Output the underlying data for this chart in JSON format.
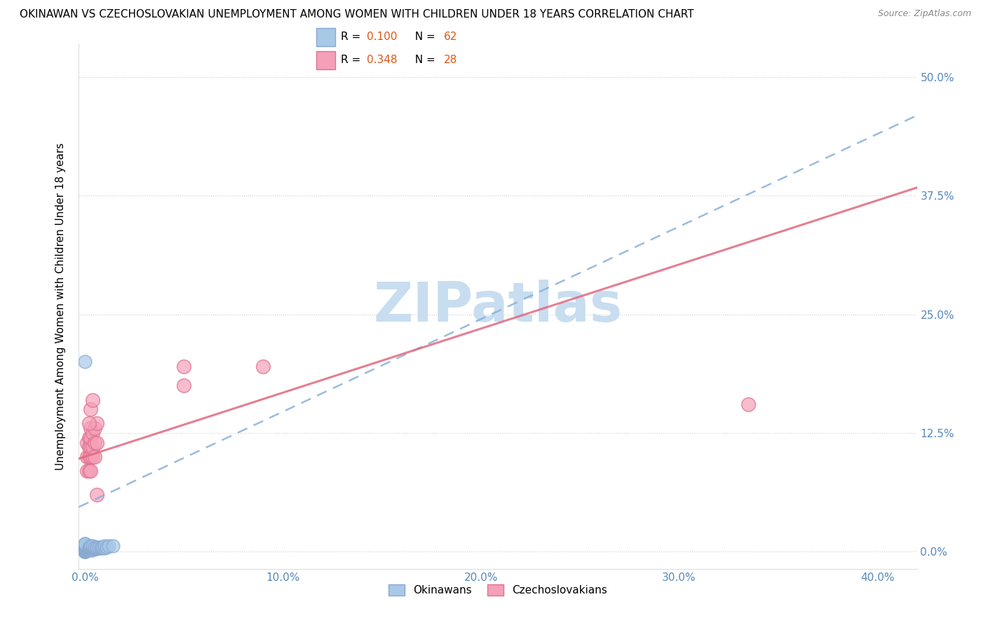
{
  "title": "OKINAWAN VS CZECHOSLOVAKIAN UNEMPLOYMENT AMONG WOMEN WITH CHILDREN UNDER 18 YEARS CORRELATION CHART",
  "source": "Source: ZipAtlas.com",
  "ylabel": "Unemployment Among Women with Children Under 18 years",
  "xlim": [
    -0.003,
    0.42
  ],
  "ylim": [
    -0.018,
    0.535
  ],
  "x_ticks": [
    0.0,
    0.1,
    0.2,
    0.3,
    0.4
  ],
  "y_ticks": [
    0.0,
    0.125,
    0.25,
    0.375,
    0.5
  ],
  "okinawan_R": 0.1,
  "okinawan_N": 62,
  "czechoslovakian_R": 0.348,
  "czechoslovakian_N": 28,
  "okinawan_color": "#a8c8e8",
  "czechoslovakian_color": "#f4a0b8",
  "okinawan_edge_color": "#88a8d0",
  "czechoslovakian_edge_color": "#e07090",
  "okinawan_line_color": "#88b0d8",
  "czechoslovakian_line_color": "#e06880",
  "tick_color": "#5588bb",
  "watermark_color": "#c8ddf0",
  "okinawan_x": [
    0.0,
    0.0,
    0.0,
    0.0,
    0.0,
    0.0,
    0.0,
    0.0,
    0.0,
    0.0,
    0.0,
    0.0,
    0.0,
    0.0,
    0.0,
    0.0,
    0.0,
    0.0,
    0.0,
    0.0,
    0.0,
    0.0,
    0.0,
    0.0,
    0.0,
    0.0,
    0.0,
    0.0,
    0.0,
    0.0,
    0.002,
    0.002,
    0.002,
    0.002,
    0.003,
    0.003,
    0.003,
    0.003,
    0.003,
    0.004,
    0.004,
    0.004,
    0.004,
    0.004,
    0.005,
    0.005,
    0.005,
    0.006,
    0.006,
    0.006,
    0.007,
    0.007,
    0.008,
    0.008,
    0.009,
    0.009,
    0.01,
    0.01,
    0.011,
    0.012,
    0.014,
    0.0
  ],
  "okinawan_y": [
    0.0,
    0.0,
    0.0,
    0.0,
    0.0,
    0.001,
    0.001,
    0.001,
    0.001,
    0.002,
    0.002,
    0.002,
    0.002,
    0.003,
    0.003,
    0.003,
    0.004,
    0.004,
    0.004,
    0.004,
    0.005,
    0.005,
    0.005,
    0.006,
    0.006,
    0.006,
    0.007,
    0.007,
    0.008,
    0.008,
    0.002,
    0.003,
    0.004,
    0.005,
    0.002,
    0.003,
    0.004,
    0.005,
    0.006,
    0.002,
    0.003,
    0.004,
    0.005,
    0.006,
    0.003,
    0.004,
    0.005,
    0.003,
    0.004,
    0.005,
    0.004,
    0.005,
    0.004,
    0.005,
    0.004,
    0.005,
    0.004,
    0.006,
    0.005,
    0.006,
    0.006,
    0.2
  ],
  "czechoslovakian_x": [
    0.001,
    0.001,
    0.001,
    0.002,
    0.002,
    0.002,
    0.002,
    0.003,
    0.003,
    0.003,
    0.003,
    0.003,
    0.004,
    0.004,
    0.004,
    0.005,
    0.005,
    0.005,
    0.006,
    0.006,
    0.05,
    0.05,
    0.09,
    0.335,
    0.002,
    0.003,
    0.004,
    0.006
  ],
  "czechoslovakian_y": [
    0.085,
    0.1,
    0.115,
    0.085,
    0.1,
    0.11,
    0.12,
    0.085,
    0.1,
    0.11,
    0.12,
    0.13,
    0.1,
    0.11,
    0.125,
    0.1,
    0.115,
    0.13,
    0.115,
    0.135,
    0.175,
    0.195,
    0.195,
    0.155,
    0.135,
    0.15,
    0.16,
    0.06
  ]
}
